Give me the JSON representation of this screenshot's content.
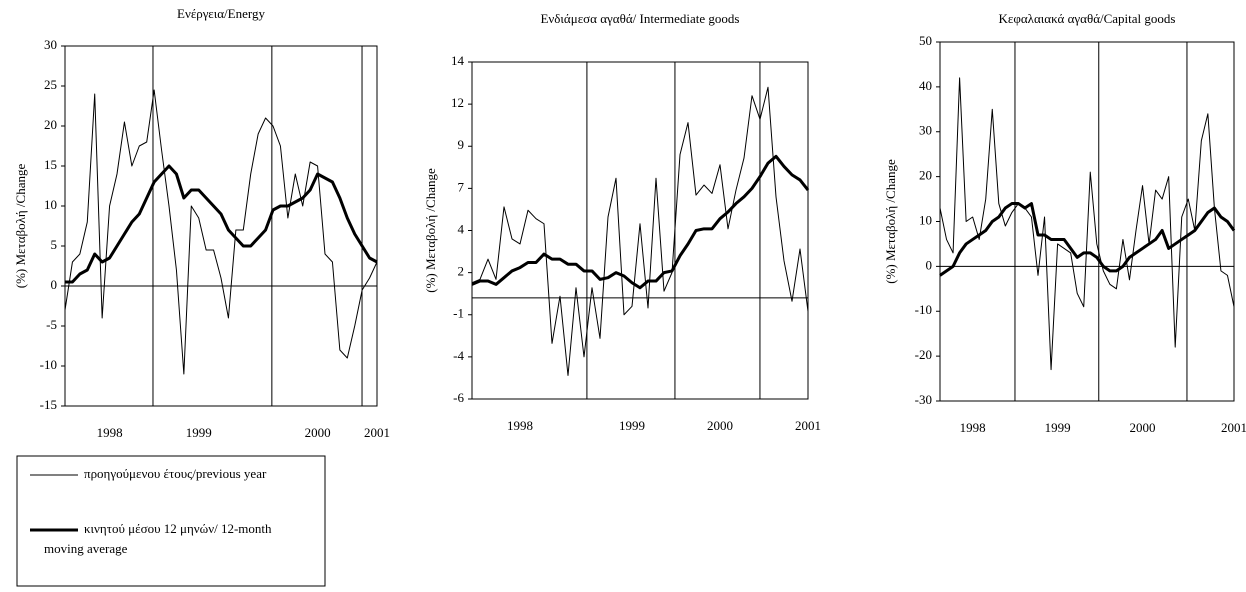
{
  "chart_data": [
    {
      "type": "line",
      "title": "Ενέργεια/Energy",
      "y_label": "(%) Μεταβολή /Change",
      "categories": [
        null,
        null,
        null,
        null,
        null,
        null,
        "1998",
        null,
        null,
        null,
        null,
        null,
        null,
        null,
        null,
        null,
        null,
        null,
        "1999",
        null,
        null,
        null,
        null,
        null,
        null,
        null,
        null,
        null,
        null,
        null,
        null,
        null,
        null,
        null,
        "2000",
        null,
        null,
        null,
        null,
        null,
        null,
        null,
        "2001"
      ],
      "ylim": [
        -15,
        30
      ],
      "yticks": [
        -15,
        -10,
        -5,
        0,
        5,
        10,
        15,
        20,
        25,
        30
      ],
      "series": [
        {
          "name": "προηγούμενου έτους/previous year",
          "color": "#000000",
          "width": 1,
          "values": [
            -3,
            3,
            4,
            8,
            24,
            -4,
            10,
            14,
            20.5,
            15,
            17.5,
            18,
            24.5,
            17,
            10,
            2,
            -11,
            10,
            8.5,
            4.5,
            4.5,
            1,
            -4,
            7,
            7,
            14,
            19,
            21,
            20,
            17.5,
            8.5,
            14,
            10,
            15.5,
            15,
            4,
            3,
            -8,
            -9,
            -5,
            -0.5,
            1,
            3
          ]
        },
        {
          "name": "κινητού μέσου 12 μηνών/ 12-month moving average",
          "color": "#000000",
          "width": 3,
          "values": [
            0.5,
            0.5,
            1.5,
            2,
            4,
            3,
            3.5,
            5,
            6.5,
            8,
            9,
            11,
            13,
            14,
            15,
            14,
            11,
            12,
            12,
            11,
            10,
            9,
            7,
            6,
            5,
            5,
            6,
            7,
            9.5,
            10,
            10,
            10.5,
            11,
            12,
            14,
            13.5,
            13,
            11,
            8.5,
            6.5,
            5,
            3.5,
            3
          ]
        }
      ]
    },
    {
      "type": "line",
      "title": "Ενδιάμεσα αγαθά/ Intermediate goods",
      "y_label": "(%) Μεταβολή /Change",
      "categories": [
        null,
        null,
        null,
        null,
        null,
        null,
        "1998",
        null,
        null,
        null,
        null,
        null,
        null,
        null,
        null,
        null,
        null,
        null,
        null,
        null,
        "1999",
        null,
        null,
        null,
        null,
        null,
        null,
        null,
        null,
        null,
        null,
        "2000",
        null,
        null,
        null,
        null,
        null,
        null,
        null,
        null,
        null,
        null,
        "2001"
      ],
      "ylim": [
        -6,
        14
      ],
      "yticks": [
        -6,
        {
          "value": -3.5,
          "label": "-4"
        },
        -1,
        {
          "value": 1.5,
          "label": "2"
        },
        4,
        {
          "value": 6.5,
          "label": "7"
        },
        9,
        {
          "value": 11.5,
          "label": "12"
        },
        14
      ],
      "series": [
        {
          "color": "#000000",
          "width": 1,
          "values": [
            0.9,
            1.1,
            2.3,
            1.1,
            5.4,
            3.5,
            3.2,
            5.2,
            4.7,
            4.4,
            -2.7,
            0.1,
            -4.6,
            0.6,
            -3.5,
            0.6,
            -2.4,
            4.8,
            7.1,
            -1.0,
            -0.5,
            4.4,
            -0.6,
            7.1,
            0.4,
            1.5,
            8.5,
            10.4,
            6.1,
            6.7,
            6.2,
            7.9,
            4.1,
            6.4,
            8.3,
            12.0,
            10.6,
            12.5,
            6.0,
            2.2,
            -0.2,
            2.9,
            -0.8
          ]
        },
        {
          "color": "#000000",
          "width": 3,
          "values": [
            0.8,
            1.0,
            1.0,
            0.8,
            1.2,
            1.6,
            1.8,
            2.1,
            2.1,
            2.6,
            2.3,
            2.3,
            2.0,
            2.0,
            1.6,
            1.6,
            1.1,
            1.2,
            1.5,
            1.3,
            0.9,
            0.6,
            1.0,
            1.0,
            1.5,
            1.6,
            2.5,
            3.2,
            4.0,
            4.1,
            4.1,
            4.7,
            5.1,
            5.6,
            6.0,
            6.5,
            7.2,
            8.0,
            8.4,
            7.8,
            7.3,
            7.0,
            6.4
          ]
        }
      ]
    },
    {
      "type": "line",
      "title": "Κεφαλαιακά αγαθά/Capital  goods",
      "y_label": "(%) Μεταβολή /Change",
      "categories": [
        null,
        null,
        null,
        null,
        null,
        "1998",
        null,
        null,
        null,
        null,
        null,
        null,
        null,
        null,
        null,
        null,
        null,
        null,
        "1999",
        null,
        null,
        null,
        null,
        null,
        null,
        null,
        null,
        null,
        null,
        null,
        null,
        "2000",
        null,
        null,
        null,
        null,
        null,
        null,
        null,
        null,
        null,
        null,
        null,
        null,
        null,
        "2001"
      ],
      "ylim": [
        -30,
        50
      ],
      "yticks": [
        -30,
        -20,
        -10,
        0,
        10,
        20,
        30,
        40,
        50
      ],
      "series": [
        {
          "color": "#000000",
          "width": 1,
          "values": [
            13,
            6,
            3,
            42,
            10,
            11,
            6,
            15,
            35,
            14,
            9,
            12,
            14,
            13,
            11,
            -2,
            11,
            -23,
            5,
            4,
            3,
            -6,
            -9,
            21,
            5,
            -1,
            -4,
            -5,
            6,
            -3,
            8,
            18,
            5,
            17,
            15,
            20,
            -18,
            11,
            15,
            8,
            28,
            34,
            13,
            -1,
            -2,
            -9
          ]
        },
        {
          "color": "#000000",
          "width": 3,
          "values": [
            -2,
            -1,
            0,
            3,
            5,
            6,
            7,
            8,
            10,
            11,
            13,
            14,
            14,
            13,
            14,
            7,
            7,
            6,
            6,
            6,
            4,
            2,
            3,
            3,
            2,
            0,
            -1,
            -1,
            0,
            2,
            3,
            4,
            5,
            6,
            8,
            4,
            5,
            6,
            7,
            8,
            10,
            12,
            13,
            11,
            10,
            8
          ]
        }
      ]
    }
  ]
}
